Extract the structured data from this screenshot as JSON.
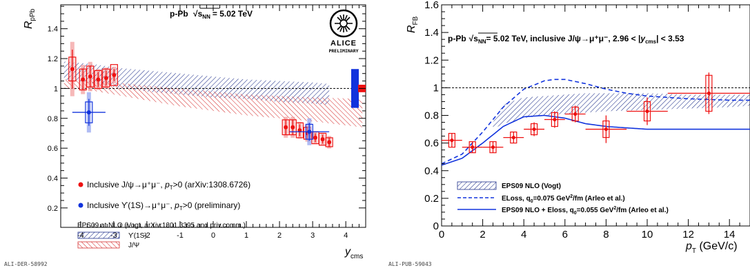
{
  "chart_data": [
    {
      "type": "scatter",
      "title": "p-Pb √sNN = 5.02 TeV",
      "title_parts": {
        "system": "p-Pb",
        "sqrt": "√",
        "s": "s",
        "sub": "NN",
        "energy": "= 5.02 TeV"
      },
      "xlabel": "y",
      "xlabel_sub": "cms",
      "ylabel": "R",
      "ylabel_sub": "pPb",
      "xlim": [
        -4.6,
        4.6
      ],
      "ylim": [
        0.07,
        1.56
      ],
      "xticks": [
        -4,
        -3,
        -2,
        -1,
        0,
        1,
        2,
        3,
        4
      ],
      "yticks": [
        0.2,
        0.4,
        0.6,
        0.8,
        1.0,
        1.2,
        1.4
      ],
      "ytick_labels": [
        "0.2",
        "0.4",
        "0.6",
        "0.8",
        "1",
        "1.2",
        "1.4"
      ],
      "reference_line": 1.0,
      "logo": "ALICE",
      "logo_sub": "PRELIMINARY",
      "footer": "ALI-DER-58992",
      "series": [
        {
          "name": "Inclusive J/ψ→μ⁺μ⁻, pT>0 (arXiv:1308.6726)",
          "legend_parts": {
            "pre": "Inclusive J/ψ→μ⁺μ⁻, ",
            "p": "p",
            "sub": "T",
            "post": ">0 (arXiv:1308.6726)"
          },
          "color": "#ee1111",
          "x": [
            -4.25,
            -3.93,
            -3.71,
            -3.47,
            -3.23,
            -2.99,
            2.19,
            2.4,
            2.61,
            2.84,
            3.08,
            3.3,
            3.5
          ],
          "y": [
            1.13,
            1.06,
            1.08,
            1.06,
            1.07,
            1.09,
            0.74,
            0.74,
            0.72,
            0.7,
            0.67,
            0.66,
            0.64
          ],
          "stat_err": [
            0.13,
            0.07,
            0.07,
            0.05,
            0.05,
            0.04,
            0.05,
            0.05,
            0.04,
            0.04,
            0.03,
            0.03,
            0.03
          ],
          "syst_err": [
            0.08,
            0.07,
            0.07,
            0.06,
            0.06,
            0.07,
            0.05,
            0.05,
            0.05,
            0.04,
            0.04,
            0.04,
            0.03
          ]
        },
        {
          "name": "Inclusive ϒ(1S)→μ⁺μ⁻, pT>0 (preliminary)",
          "legend_parts": {
            "pre": "Inclusive ϒ(1S)→μ⁺μ⁻, ",
            "p": "p",
            "sub": "T",
            "post": ">0 (preliminary)"
          },
          "color": "#1133dd",
          "x": [
            -3.75,
            2.9
          ],
          "y": [
            0.84,
            0.71
          ],
          "x_err": [
            0.5,
            0.6
          ],
          "stat_err": [
            0.09,
            0.06
          ],
          "syst_err": [
            0.07,
            0.05
          ]
        }
      ],
      "models_header": "EPS09 at NLO (Vogt, arXiv:1301.3395 and priv.comm.)",
      "models": [
        {
          "name": "ϒ(1S)",
          "color": "#1e2f8a",
          "x": [
            -4.5,
            -3.5,
            -3,
            -2,
            -1,
            0,
            1,
            2,
            3,
            3.5
          ],
          "upper": [
            1.18,
            1.16,
            1.14,
            1.12,
            1.1,
            1.08,
            1.06,
            1.05,
            1.04,
            1.03
          ],
          "lower": [
            1.06,
            1.03,
            1.01,
            0.98,
            0.96,
            0.94,
            0.93,
            0.91,
            0.9,
            0.89
          ]
        },
        {
          "name": "J/Ψ",
          "color": "#d63030",
          "x": [
            -4.5,
            -3.5,
            -3,
            -2,
            -1,
            0,
            1,
            2,
            3,
            4.5
          ],
          "upper": [
            1.06,
            1.05,
            1.04,
            1.02,
            1.0,
            0.98,
            0.96,
            0.95,
            0.94,
            0.93
          ],
          "lower": [
            1.0,
            0.98,
            0.96,
            0.92,
            0.88,
            0.85,
            0.82,
            0.8,
            0.78,
            0.74
          ]
        }
      ],
      "global_uncertainty_boxes": [
        {
          "color": "#1133dd",
          "center": 1.0,
          "half": 0.13
        },
        {
          "color": "#ee1111",
          "center": 1.0,
          "half": 0.025
        }
      ]
    },
    {
      "type": "scatter",
      "title": "p-Pb √sNN= 5.02 TeV, inclusive J/ψ→μ⁺μ⁻, 2.96 < |ycms| < 3.53",
      "title_parts": {
        "system": "p-Pb",
        "sqrt": "√",
        "s": "s",
        "sub": "NN",
        "energy": "= 5.02 TeV, inclusive J/ψ→μ⁺μ⁻, 2.96 < |",
        "y": "y",
        "ysub": "cms",
        "post": "| < 3.53"
      },
      "xlabel": "p",
      "xlabel_sub": "T",
      "xlabel_post": " (GeV/c)",
      "ylabel": "R",
      "ylabel_sub": "FB",
      "xlim": [
        0,
        15
      ],
      "ylim": [
        0,
        1.6
      ],
      "xticks": [
        0,
        2,
        4,
        6,
        8,
        10,
        12,
        14
      ],
      "yticks": [
        0,
        0.2,
        0.4,
        0.6,
        0.8,
        1.0,
        1.2,
        1.4,
        1.6
      ],
      "ytick_labels": [
        "0",
        "0.2",
        "0.4",
        "0.6",
        "0.8",
        "1",
        "1.2",
        "1.4",
        "1.6"
      ],
      "reference_line": 1.0,
      "footer": "ALI-PUB-59043",
      "series": [
        {
          "name": "inclusive J/ψ",
          "color": "#ee1111",
          "x": [
            0.5,
            1.5,
            2.5,
            3.5,
            4.5,
            5.5,
            6.5,
            8.0,
            10.0,
            13.0
          ],
          "x_err": [
            0.5,
            0.5,
            0.5,
            0.5,
            0.5,
            0.5,
            0.5,
            1.0,
            1.0,
            2.0
          ],
          "y": [
            0.62,
            0.57,
            0.57,
            0.64,
            0.7,
            0.77,
            0.81,
            0.7,
            0.83,
            0.96
          ],
          "stat_err": [
            0.05,
            0.04,
            0.04,
            0.04,
            0.05,
            0.06,
            0.06,
            0.1,
            0.1,
            0.15
          ],
          "syst_err": [
            0.05,
            0.04,
            0.04,
            0.04,
            0.04,
            0.05,
            0.05,
            0.06,
            0.07,
            0.13
          ]
        }
      ],
      "legend": [
        {
          "name": "EPS09 NLO (Vogt)",
          "style": "band",
          "color": "#1e2f8a"
        },
        {
          "name": "ELoss, q0=0.075 GeV²/fm (Arleo et al.)",
          "style": "dashed",
          "color": "#1133dd",
          "parts": {
            "pre": "ELoss, q",
            "sub": "0",
            "mid": "=0.075 GeV",
            "sup": "2",
            "post": "/fm (Arleo et al.)"
          }
        },
        {
          "name": "EPS09 NLO + Eloss, q0=0.055 GeV²/fm (Arleo et al.)",
          "style": "solid",
          "color": "#1133dd",
          "parts": {
            "pre": "EPS09 NLO + Eloss, q",
            "sub": "0",
            "mid": "=0.055 GeV",
            "sup": "2",
            "post": "/fm (Arleo et al.)"
          }
        }
      ],
      "models": [
        {
          "name": "EPS09 NLO (Vogt)",
          "color": "#1e2f8a",
          "x": [
            2.5,
            3,
            4,
            5,
            6,
            7,
            8,
            10,
            12,
            14,
            15
          ],
          "upper": [
            0.75,
            0.88,
            0.93,
            0.94,
            0.95,
            0.96,
            0.96,
            0.96,
            0.95,
            0.95,
            0.95
          ],
          "lower": [
            0.7,
            0.74,
            0.78,
            0.8,
            0.81,
            0.82,
            0.83,
            0.84,
            0.85,
            0.86,
            0.87
          ]
        },
        {
          "name": "ELoss, q0=0.075 GeV²/fm (Arleo et al.)",
          "style": "dashed",
          "x": [
            0,
            1,
            2,
            3,
            4,
            5,
            5.5,
            6,
            7,
            8,
            9,
            10,
            12,
            14,
            15
          ],
          "y": [
            0.45,
            0.52,
            0.68,
            0.86,
            0.99,
            1.05,
            1.06,
            1.06,
            1.03,
            0.99,
            0.96,
            0.94,
            0.92,
            0.91,
            0.91
          ]
        },
        {
          "name": "EPS09 NLO + Eloss, q0=0.055 GeV²/fm (Arleo et al.)",
          "style": "solid",
          "x": [
            0,
            1,
            2,
            3,
            4,
            5,
            6,
            7,
            8,
            10,
            12,
            14,
            15
          ],
          "y": [
            0.44,
            0.49,
            0.6,
            0.72,
            0.79,
            0.8,
            0.78,
            0.74,
            0.72,
            0.7,
            0.7,
            0.7,
            0.7
          ]
        }
      ]
    }
  ]
}
